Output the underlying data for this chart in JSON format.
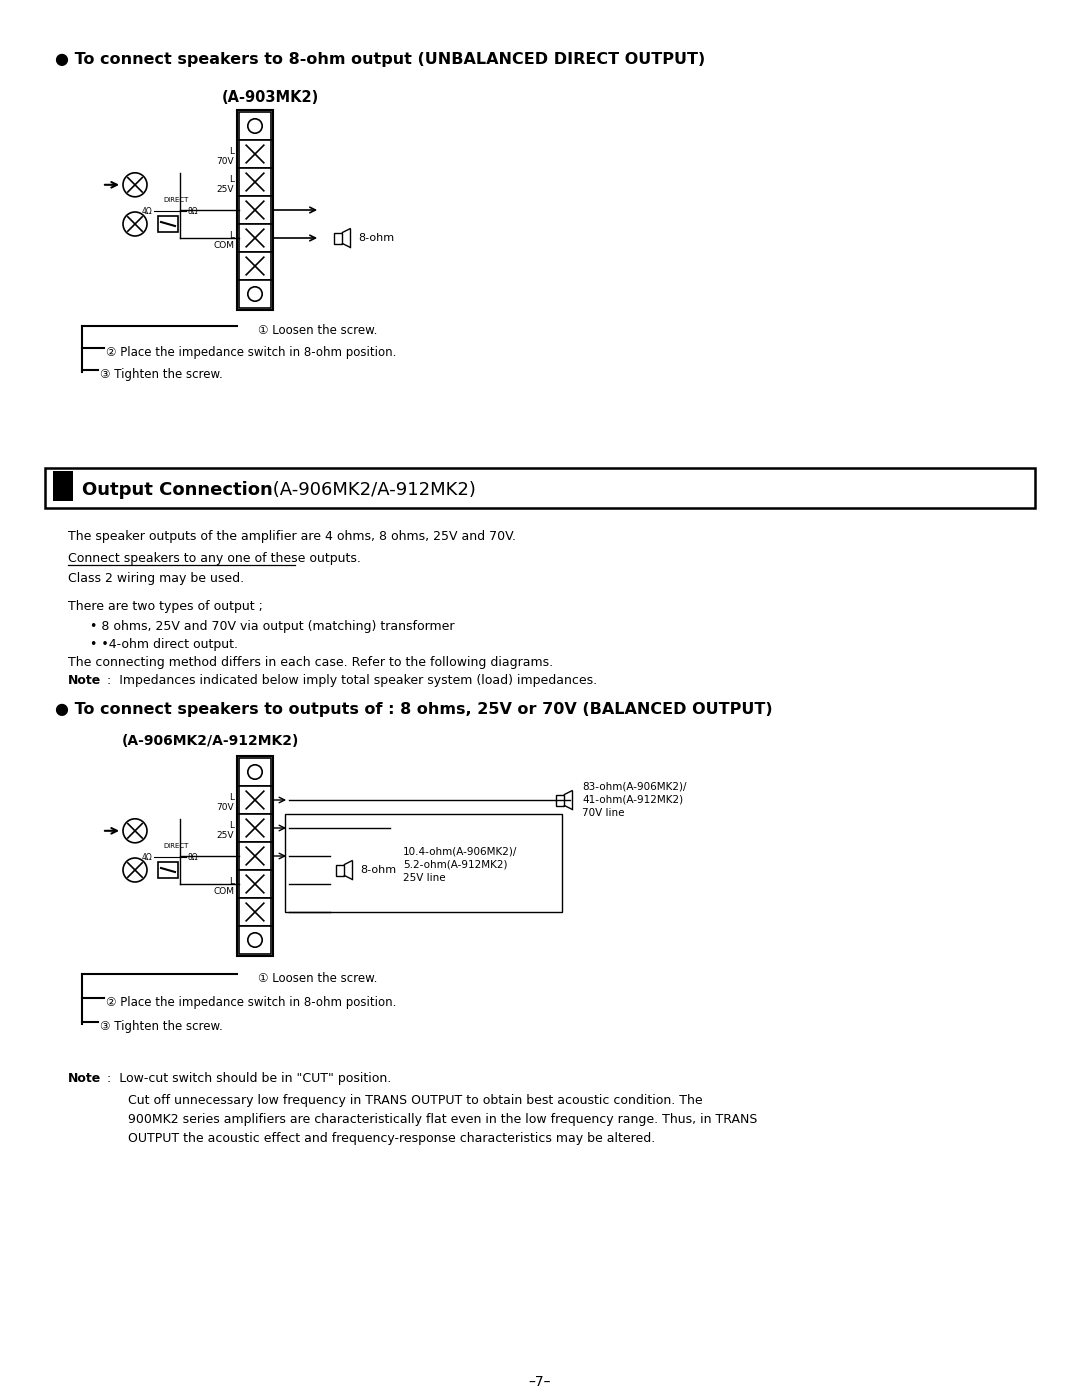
{
  "bg_color": "#ffffff",
  "page_width": 10.8,
  "page_height": 13.97,
  "section1_title": "● To connect speakers to 8-ohm output (UNBALANCED DIRECT OUTPUT)",
  "section1_subtitle": "(A-903MK2)",
  "step1_1": "① Loosen the screw.",
  "step1_2": "② Place the impedance switch in 8-ohm position.",
  "step1_3": "③ Tighten the screw.",
  "section2_box_title_bold": "Output Connection",
  "section2_box_title_normal": " (A-906MK2/A-912MK2)",
  "para1": "The speaker outputs of the amplifier are 4 ohms, 8 ohms, 25V and 70V.",
  "para2_underline": "Connect speakers to any one of these outputs.",
  "para3": "Class 2 wiring may be used.",
  "para4": "There are two types of output ;",
  "bullet1": "• 8 ohms, 25V and 70V via output (matching) transformer",
  "bullet2": "• •4-ohm direct output.",
  "para5": "The connecting method differs in each case. Refer to the following diagrams.",
  "para6_bold": "Note",
  "para6_rest": " :  Impedances indicated below imply total speaker system (load) impedances.",
  "section3_title": "● To connect speakers to outputs of : 8 ohms, 25V or 70V (BALANCED OUTPUT)",
  "section3_subtitle": "(A-906MK2/A-912MK2)",
  "step3_1": "① Loosen the screw.",
  "step3_2": "② Place the impedance switch in 8-ohm position.",
  "step3_3": "③ Tighten the screw.",
  "note_bold": "Note",
  "note_rest": " :  Low-cut switch should be in \"CUT\" position.",
  "note_para": "Cut off unnecessary low frequency in TRANS OUTPUT to obtain best acoustic condition. The\n900MK2 series amplifiers are characteristically flat even in the low frequency range. Thus, in TRANS\nOUTPUT the acoustic effect and frequency-response characteristics may be altered.",
  "page_num": "–7–",
  "label_direct": "DIRECT",
  "label_4ohm": "4Ω",
  "label_8ohm_sw": "8Ω",
  "label_70v": "70V",
  "label_l": "L",
  "label_25v": "25V",
  "label_com": "COM",
  "label_8ohm_spk": "8-ohm",
  "label_25v_box": "10.4-ohm(A-906MK2)/\n5.2-ohm(A-912MK2)\n25V line",
  "label_70v_box": "83-ohm(A-906MK2)/\n41-ohm(A-912MK2)\n70V line"
}
